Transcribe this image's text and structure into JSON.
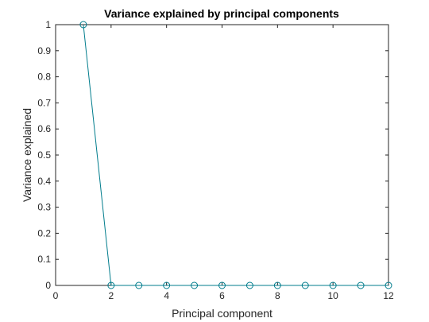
{
  "chart_data": {
    "type": "line",
    "title": "Variance explained by principal components",
    "xlabel": "Principal component",
    "ylabel": "Variance explained",
    "xlim": [
      0,
      12
    ],
    "ylim": [
      0,
      1
    ],
    "xticks": [
      "0",
      "2",
      "4",
      "6",
      "8",
      "10",
      "12"
    ],
    "yticks": [
      "0",
      "0.1",
      "0.2",
      "0.3",
      "0.4",
      "0.5",
      "0.6",
      "0.7",
      "0.8",
      "0.9",
      "1"
    ],
    "grid": false,
    "marker": "circle-open",
    "series": [
      {
        "x": [
          1,
          2,
          3,
          4,
          5,
          6,
          7,
          8,
          9,
          10,
          11,
          12
        ],
        "values": [
          1,
          0,
          0,
          0,
          0,
          0,
          0,
          0,
          0,
          0,
          0,
          0
        ],
        "color": "#007c8c"
      }
    ]
  },
  "colors": {
    "axis": "#262626",
    "background": "#ffffff"
  }
}
